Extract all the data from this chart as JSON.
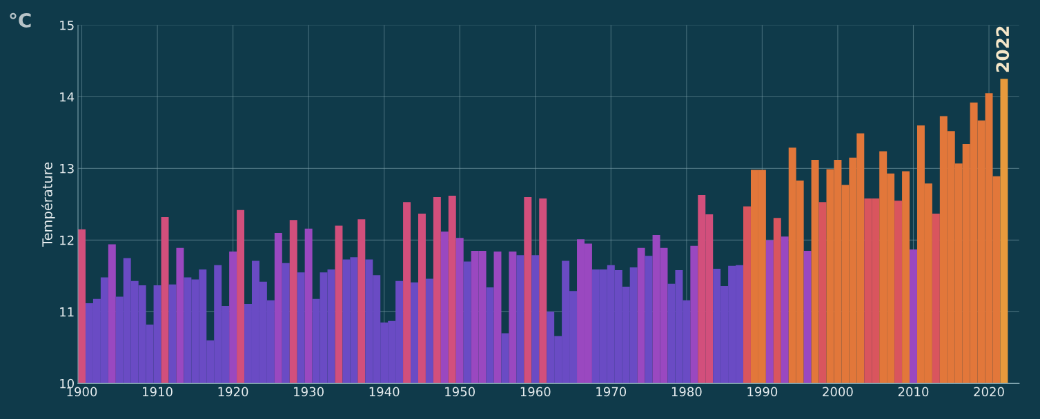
{
  "chart_data": {
    "type": "bar",
    "ylabel": "Température",
    "annotations": [
      "°C",
      {
        "text": "2022",
        "x": 2022,
        "y": 14.25
      }
    ],
    "x": [
      1900,
      1901,
      1902,
      1903,
      1904,
      1905,
      1906,
      1907,
      1908,
      1909,
      1910,
      1911,
      1912,
      1913,
      1914,
      1915,
      1916,
      1917,
      1918,
      1919,
      1920,
      1921,
      1922,
      1923,
      1924,
      1925,
      1926,
      1927,
      1928,
      1929,
      1930,
      1931,
      1932,
      1933,
      1934,
      1935,
      1936,
      1937,
      1938,
      1939,
      1940,
      1941,
      1942,
      1943,
      1944,
      1945,
      1946,
      1947,
      1948,
      1949,
      1950,
      1951,
      1952,
      1953,
      1954,
      1955,
      1956,
      1957,
      1958,
      1959,
      1960,
      1961,
      1962,
      1963,
      1964,
      1965,
      1966,
      1967,
      1968,
      1969,
      1970,
      1971,
      1972,
      1973,
      1974,
      1975,
      1976,
      1977,
      1978,
      1979,
      1980,
      1981,
      1982,
      1983,
      1984,
      1985,
      1986,
      1987,
      1988,
      1989,
      1990,
      1991,
      1992,
      1993,
      1994,
      1995,
      1996,
      1997,
      1998,
      1999,
      2000,
      2001,
      2002,
      2003,
      2004,
      2005,
      2006,
      2007,
      2008,
      2009,
      2010,
      2011,
      2012,
      2013,
      2014,
      2015,
      2016,
      2017,
      2018,
      2019,
      2020,
      2021,
      2022
    ],
    "values": [
      12.15,
      11.12,
      11.18,
      11.48,
      11.94,
      11.21,
      11.75,
      11.43,
      11.37,
      10.82,
      11.37,
      12.32,
      11.38,
      11.89,
      11.48,
      11.45,
      11.59,
      10.6,
      11.65,
      11.08,
      11.84,
      12.42,
      11.11,
      11.71,
      11.42,
      11.16,
      12.1,
      11.68,
      12.28,
      11.55,
      12.16,
      11.18,
      11.55,
      11.59,
      12.2,
      11.73,
      11.76,
      12.29,
      11.73,
      11.51,
      10.85,
      10.87,
      11.43,
      12.53,
      11.41,
      12.37,
      11.46,
      12.6,
      12.12,
      12.62,
      12.03,
      11.7,
      11.85,
      11.85,
      11.34,
      11.84,
      10.7,
      11.84,
      11.79,
      12.6,
      11.79,
      12.58,
      11.0,
      10.66,
      11.71,
      11.29,
      12.01,
      11.95,
      11.59,
      11.59,
      11.65,
      11.58,
      11.35,
      11.62,
      11.89,
      11.78,
      12.07,
      11.89,
      11.39,
      11.58,
      11.16,
      11.92,
      12.63,
      12.36,
      11.6,
      11.36,
      11.64,
      11.65,
      12.47,
      12.98,
      12.98,
      12.0,
      12.31,
      12.05,
      13.29,
      12.83,
      11.85,
      13.12,
      12.53,
      12.99,
      13.12,
      12.77,
      13.15,
      13.49,
      12.58,
      12.58,
      13.24,
      12.93,
      12.55,
      12.96,
      11.87,
      13.6,
      12.79,
      12.37,
      13.73,
      13.52,
      13.07,
      13.34,
      13.92,
      13.67,
      14.05,
      12.89,
      14.25
    ],
    "colors": [
      "#d24f7c",
      "#6a4bc4",
      "#6a4bc4",
      "#6a4bc4",
      "#9a48c0",
      "#6a4bc4",
      "#6a4bc4",
      "#6a4bc4",
      "#6a4bc4",
      "#6a4bc4",
      "#6a4bc4",
      "#d24f7c",
      "#6a4bc4",
      "#9a48c0",
      "#6a4bc4",
      "#6a4bc4",
      "#6a4bc4",
      "#6a4bc4",
      "#6a4bc4",
      "#6a4bc4",
      "#9a48c0",
      "#d24f7c",
      "#6a4bc4",
      "#6a4bc4",
      "#6a4bc4",
      "#6a4bc4",
      "#9a48c0",
      "#6a4bc4",
      "#d24f7c",
      "#6a4bc4",
      "#9a48c0",
      "#6a4bc4",
      "#6a4bc4",
      "#6a4bc4",
      "#d24f7c",
      "#6a4bc4",
      "#6a4bc4",
      "#d24f7c",
      "#6a4bc4",
      "#6a4bc4",
      "#6a4bc4",
      "#6a4bc4",
      "#6a4bc4",
      "#d24f7c",
      "#6a4bc4",
      "#d24f7c",
      "#6a4bc4",
      "#d24f7c",
      "#9a48c0",
      "#d24f7c",
      "#9a48c0",
      "#6a4bc4",
      "#9a48c0",
      "#9a48c0",
      "#6a4bc4",
      "#9a48c0",
      "#6a4bc4",
      "#9a48c0",
      "#6a4bc4",
      "#d24f7c",
      "#6a4bc4",
      "#d24f7c",
      "#6a4bc4",
      "#6a4bc4",
      "#6a4bc4",
      "#6a4bc4",
      "#9a48c0",
      "#9a48c0",
      "#6a4bc4",
      "#6a4bc4",
      "#6a4bc4",
      "#6a4bc4",
      "#6a4bc4",
      "#6a4bc4",
      "#9a48c0",
      "#6a4bc4",
      "#9a48c0",
      "#9a48c0",
      "#6a4bc4",
      "#6a4bc4",
      "#6a4bc4",
      "#9a48c0",
      "#d24f7c",
      "#d24f7c",
      "#6a4bc4",
      "#6a4bc4",
      "#6a4bc4",
      "#6a4bc4",
      "#d9555e",
      "#e2773a",
      "#e2773a",
      "#9a48c0",
      "#d9555e",
      "#9a48c0",
      "#e2773a",
      "#e2773a",
      "#9a48c0",
      "#e2773a",
      "#d9555e",
      "#e2773a",
      "#e2773a",
      "#e2773a",
      "#e2773a",
      "#e2773a",
      "#d9555e",
      "#d9555e",
      "#e2773a",
      "#e2773a",
      "#d9555e",
      "#e2773a",
      "#9a48c0",
      "#e2773a",
      "#e2773a",
      "#d9555e",
      "#e2773a",
      "#e2773a",
      "#e2773a",
      "#e2773a",
      "#e2773a",
      "#e2773a",
      "#e2773a",
      "#e2773a",
      "#e89a3c"
    ],
    "xlim": [
      1899.5,
      2024
    ],
    "xticks": [
      1900,
      1910,
      1920,
      1930,
      1940,
      1950,
      1960,
      1970,
      1980,
      1990,
      2000,
      2010,
      2020
    ],
    "ylim": [
      10,
      15
    ],
    "yticks": [
      10,
      11,
      12,
      13,
      14,
      15
    ],
    "grid": true
  }
}
